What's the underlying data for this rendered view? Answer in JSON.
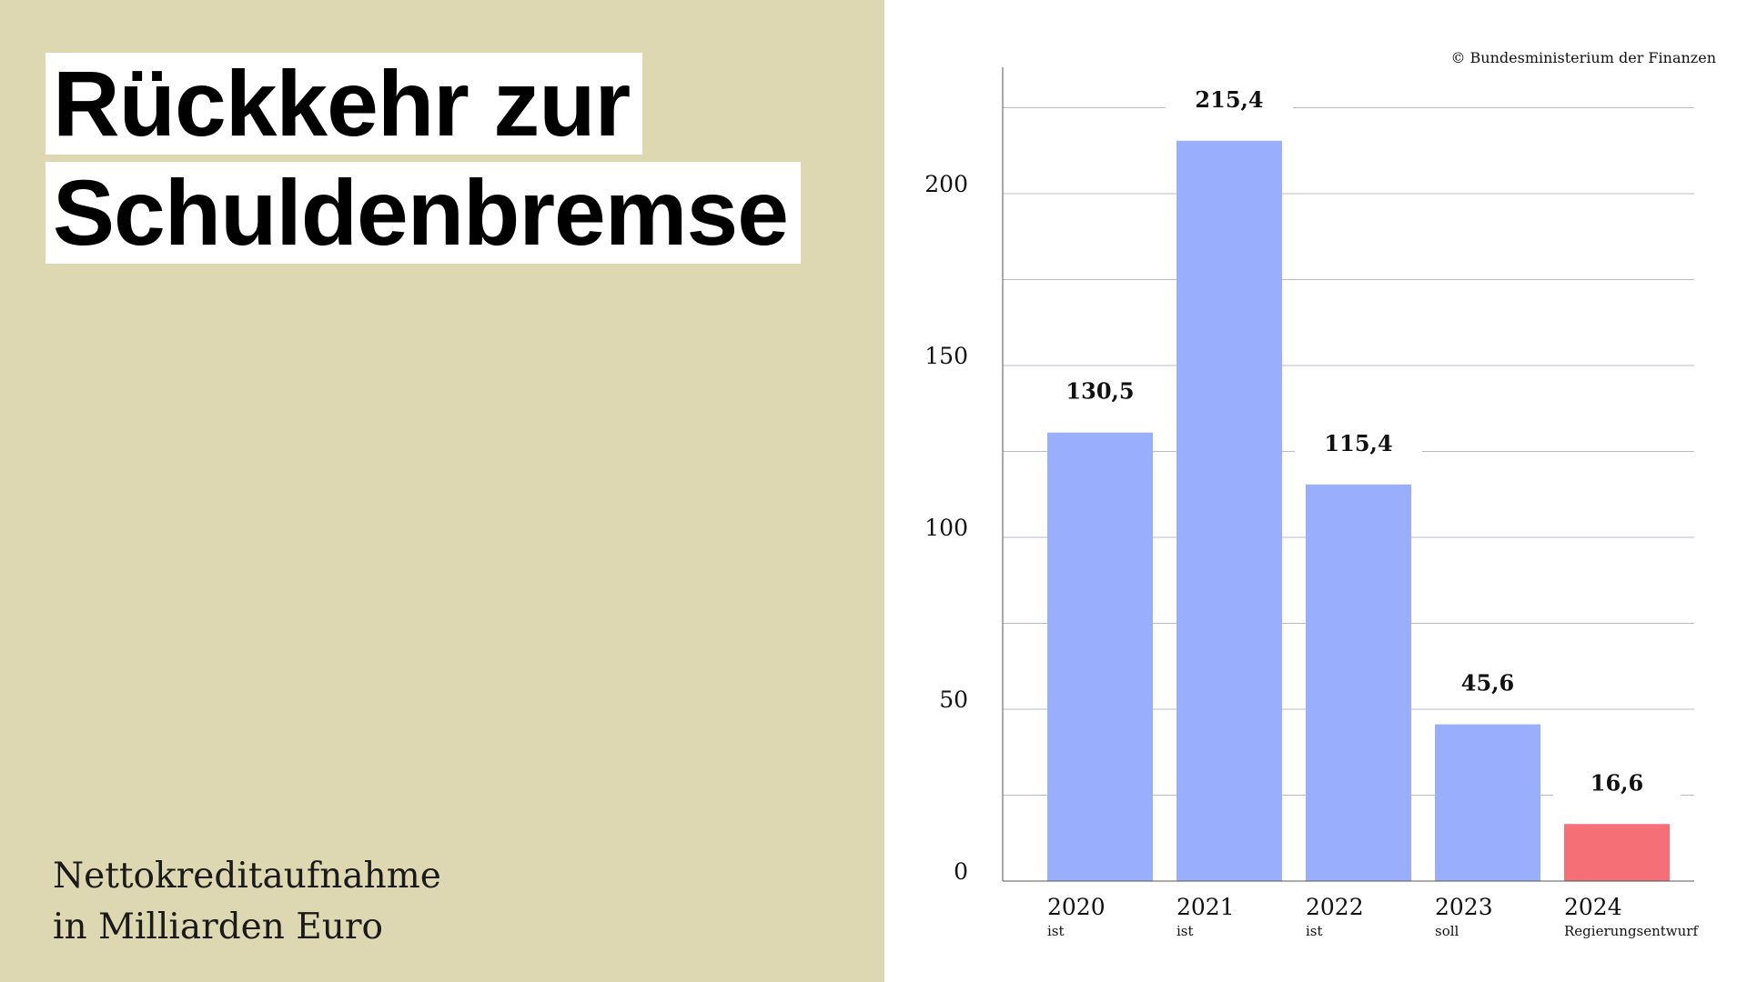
{
  "title": {
    "line1": "Rückkehr zur",
    "line2": "Schuldenbremse"
  },
  "subtitle": {
    "line1": "Nettokreditaufnahme",
    "line2": "in Milliarden Euro"
  },
  "copyright": "© Bundesministerium der Finanzen",
  "colors": {
    "background_left": "#ddd8b1",
    "bar_default": "#99aefc",
    "bar_highlight": "#f46f76",
    "gridline": "#b9bccf",
    "axis": "#555555"
  },
  "chart_data": {
    "type": "bar",
    "categories": [
      "2020",
      "2021",
      "2022",
      "2023",
      "2024"
    ],
    "category_sublabels": [
      "ist",
      "ist",
      "ist",
      "soll",
      "Regierungsentwurf"
    ],
    "values": [
      130.5,
      215.4,
      115.4,
      45.6,
      16.6
    ],
    "value_labels": [
      "130,5",
      "215,4",
      "115,4",
      "45,6",
      "16,6"
    ],
    "highlight_index": 4,
    "ylim": [
      0,
      240
    ],
    "yticks": [
      0,
      50,
      100,
      150,
      200
    ],
    "ytick_labels": [
      "0",
      "50",
      "100",
      "150",
      "200"
    ],
    "grid": true,
    "title": "",
    "xlabel": "",
    "ylabel": ""
  }
}
